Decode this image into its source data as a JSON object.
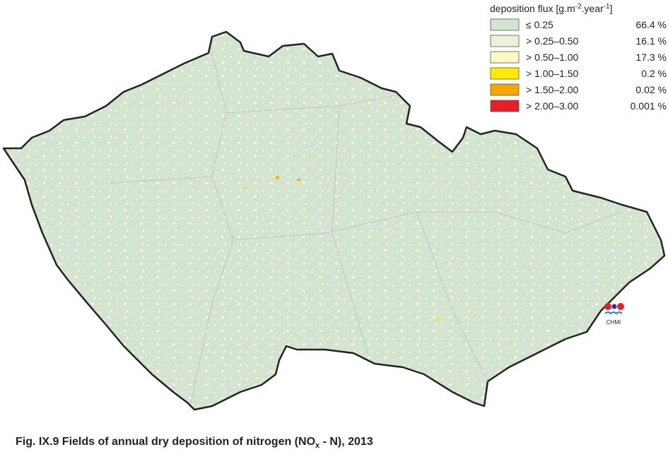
{
  "legend": {
    "title": {
      "text": "deposition flux [g.m",
      "sup1": "-2",
      "mid": ".year",
      "sup2": "-1",
      "end": "]"
    },
    "items": [
      {
        "label": "≤ 0.25",
        "share": "66.4 %",
        "color": "#d3e5d2"
      },
      {
        "label": "> 0.25–0.50",
        "share": "16.1 %",
        "color": "#edf1d5"
      },
      {
        "label": "> 0.50–1.00",
        "share": "17.3 %",
        "color": "#fff8c6"
      },
      {
        "label": "> 1.00–1.50",
        "share": "0.2 %",
        "color": "#ffec00"
      },
      {
        "label": "> 1.50–2.00",
        "share": "0.02 %",
        "color": "#f5a600"
      },
      {
        "label": "> 2.00–3.00",
        "share": "0.001 %",
        "color": "#e5202a"
      }
    ]
  },
  "logo": {
    "text": "CHMI"
  },
  "caption": {
    "text": "Fig. IX.9  Fields of annual dry deposition of nitrogen (NO",
    "sub": "x",
    "end": " - N), 2013"
  }
}
